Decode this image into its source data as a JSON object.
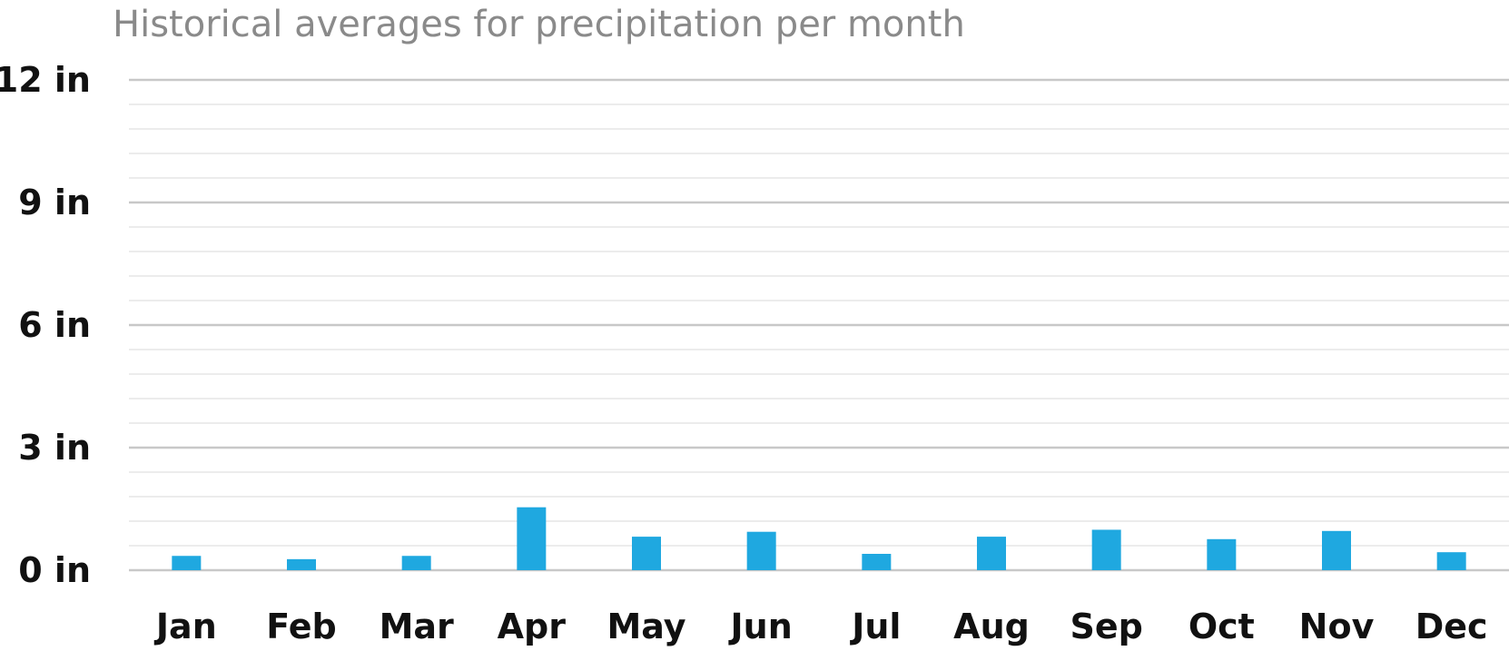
{
  "chart_data": {
    "type": "bar",
    "title": "Historical averages for precipitation per month",
    "xlabel": "",
    "ylabel": "",
    "categories": [
      "Jan",
      "Feb",
      "Mar",
      "Apr",
      "May",
      "Jun",
      "Jul",
      "Aug",
      "Sep",
      "Oct",
      "Nov",
      "Dec"
    ],
    "values": [
      0.35,
      0.27,
      0.35,
      1.54,
      0.82,
      0.94,
      0.4,
      0.82,
      0.99,
      0.76,
      0.96,
      0.44
    ],
    "ylim": [
      0,
      12
    ],
    "ytick_values": [
      0,
      3,
      6,
      9,
      12
    ],
    "ytick_labels": [
      "0 in",
      "3 in",
      "6 in",
      "9 in",
      "12 in"
    ],
    "minor_grid_step": 0.6,
    "grid": true,
    "legend": "none",
    "bar_color": "#1fa8e0",
    "major_grid_color": "#c8c8c8",
    "minor_grid_color": "#ececec"
  }
}
